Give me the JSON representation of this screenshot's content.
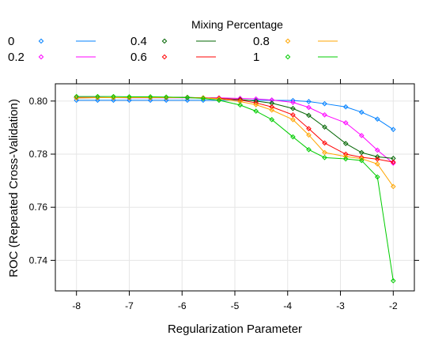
{
  "chart_data": {
    "type": "line",
    "legend_title": "Mixing Percentage",
    "legend_position": "top",
    "xlabel": "Regularization Parameter",
    "ylabel": "ROC (Repeated Cross-Validation)",
    "xlim": [
      -8.4,
      -1.6
    ],
    "ylim": [
      0.7285,
      0.8065
    ],
    "grid": true,
    "x_ticks": [
      -8,
      -7,
      -6,
      -5,
      -4,
      -3,
      -2
    ],
    "y_ticks": [
      0.74,
      0.76,
      0.78,
      0.8
    ],
    "y_tick_labels": [
      "0.74",
      "0.76",
      "0.78",
      "0.80"
    ],
    "x": [
      -8.0,
      -7.6,
      -7.3,
      -7.0,
      -6.6,
      -6.3,
      -5.9,
      -5.6,
      -5.3,
      -4.9,
      -4.6,
      -4.3,
      -3.9,
      -3.6,
      -3.3,
      -2.9,
      -2.6,
      -2.3,
      -2.0
    ],
    "series": [
      {
        "name": "0",
        "color": "#0080ff",
        "values": [
          0.8003,
          0.8003,
          0.8003,
          0.8003,
          0.8003,
          0.8003,
          0.8003,
          0.8003,
          0.8003,
          0.8003,
          0.8003,
          0.8003,
          0.8002,
          0.7998,
          0.799,
          0.7978,
          0.7958,
          0.7932,
          0.7893
        ]
      },
      {
        "name": "0.2",
        "color": "#ff00ff",
        "values": [
          0.8014,
          0.8014,
          0.8013,
          0.8012,
          0.8012,
          0.8012,
          0.8012,
          0.8012,
          0.8012,
          0.801,
          0.8008,
          0.8004,
          0.7995,
          0.7976,
          0.7948,
          0.7918,
          0.787,
          0.7815,
          0.7766
        ]
      },
      {
        "name": "0.4",
        "color": "#006400",
        "values": [
          0.8012,
          0.8013,
          0.8013,
          0.8013,
          0.8014,
          0.8014,
          0.8014,
          0.8012,
          0.801,
          0.8006,
          0.8,
          0.7992,
          0.7972,
          0.7946,
          0.7902,
          0.784,
          0.7806,
          0.779,
          0.7784
        ]
      },
      {
        "name": "0.6",
        "color": "#ff0000",
        "values": [
          0.8012,
          0.8013,
          0.8013,
          0.8013,
          0.8013,
          0.8013,
          0.8013,
          0.8012,
          0.801,
          0.8004,
          0.7993,
          0.7978,
          0.7948,
          0.7896,
          0.7842,
          0.78,
          0.7788,
          0.7781,
          0.777
        ]
      },
      {
        "name": "0.8",
        "color": "#ffa500",
        "values": [
          0.8012,
          0.8013,
          0.8013,
          0.8013,
          0.8013,
          0.8013,
          0.8013,
          0.8012,
          0.8008,
          0.7998,
          0.7986,
          0.7966,
          0.793,
          0.7872,
          0.7806,
          0.7791,
          0.7783,
          0.7763,
          0.7678
        ]
      },
      {
        "name": "1",
        "color": "#00cc00",
        "values": [
          0.8017,
          0.8017,
          0.8017,
          0.8016,
          0.8016,
          0.8015,
          0.8013,
          0.801,
          0.8003,
          0.7985,
          0.7962,
          0.793,
          0.7865,
          0.7817,
          0.7787,
          0.7782,
          0.7776,
          0.7714,
          0.7323
        ]
      }
    ]
  }
}
